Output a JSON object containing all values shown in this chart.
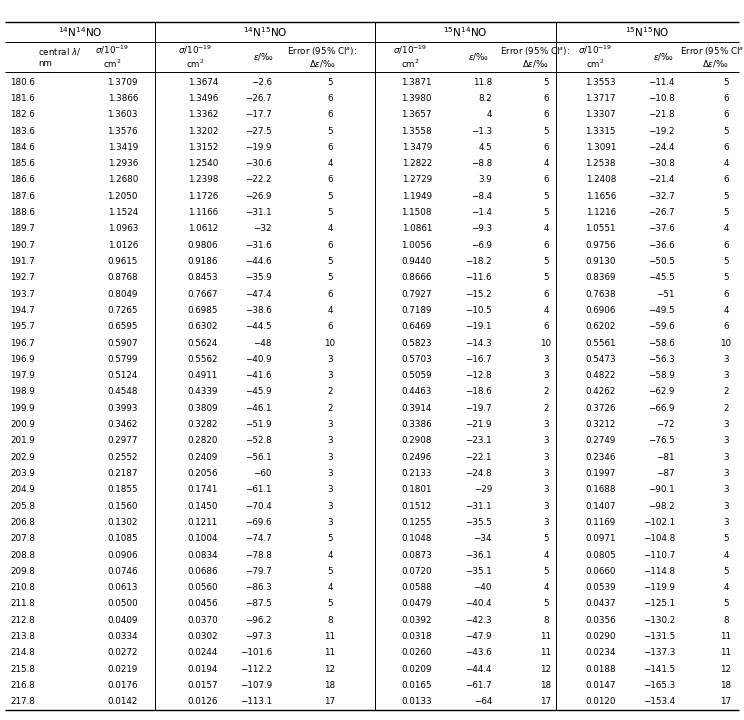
{
  "rows": [
    [
      "180.6",
      "1.3709",
      "1.3674",
      "−2.6",
      "5",
      "1.3871",
      "11.8",
      "5",
      "1.3553",
      "−11.4",
      "5"
    ],
    [
      "181.6",
      "1.3866",
      "1.3496",
      "−26.7",
      "6",
      "1.3980",
      "8.2",
      "6",
      "1.3717",
      "−10.8",
      "6"
    ],
    [
      "182.6",
      "1.3603",
      "1.3362",
      "−17.7",
      "6",
      "1.3657",
      "4",
      "6",
      "1.3307",
      "−21.8",
      "6"
    ],
    [
      "183.6",
      "1.3576",
      "1.3202",
      "−27.5",
      "5",
      "1.3558",
      "−1.3",
      "5",
      "1.3315",
      "−19.2",
      "5"
    ],
    [
      "184.6",
      "1.3419",
      "1.3152",
      "−19.9",
      "6",
      "1.3479",
      "4.5",
      "6",
      "1.3091",
      "−24.4",
      "6"
    ],
    [
      "185.6",
      "1.2936",
      "1.2540",
      "−30.6",
      "4",
      "1.2822",
      "−8.8",
      "4",
      "1.2538",
      "−30.8",
      "4"
    ],
    [
      "186.6",
      "1.2680",
      "1.2398",
      "−22.2",
      "6",
      "1.2729",
      "3.9",
      "6",
      "1.2408",
      "−21.4",
      "6"
    ],
    [
      "187.6",
      "1.2050",
      "1.1726",
      "−26.9",
      "5",
      "1.1949",
      "−8.4",
      "5",
      "1.1656",
      "−32.7",
      "5"
    ],
    [
      "188.6",
      "1.1524",
      "1.1166",
      "−31.1",
      "5",
      "1.1508",
      "−1.4",
      "5",
      "1.1216",
      "−26.7",
      "5"
    ],
    [
      "189.7",
      "1.0963",
      "1.0612",
      "−32",
      "4",
      "1.0861",
      "−9.3",
      "4",
      "1.0551",
      "−37.6",
      "4"
    ],
    [
      "190.7",
      "1.0126",
      "0.9806",
      "−31.6",
      "6",
      "1.0056",
      "−6.9",
      "6",
      "0.9756",
      "−36.6",
      "6"
    ],
    [
      "191.7",
      "0.9615",
      "0.9186",
      "−44.6",
      "5",
      "0.9440",
      "−18.2",
      "5",
      "0.9130",
      "−50.5",
      "5"
    ],
    [
      "192.7",
      "0.8768",
      "0.8453",
      "−35.9",
      "5",
      "0.8666",
      "−11.6",
      "5",
      "0.8369",
      "−45.5",
      "5"
    ],
    [
      "193.7",
      "0.8049",
      "0.7667",
      "−47.4",
      "6",
      "0.7927",
      "−15.2",
      "6",
      "0.7638",
      "−51",
      "6"
    ],
    [
      "194.7",
      "0.7265",
      "0.6985",
      "−38.6",
      "4",
      "0.7189",
      "−10.5",
      "4",
      "0.6906",
      "−49.5",
      "4"
    ],
    [
      "195.7",
      "0.6595",
      "0.6302",
      "−44.5",
      "6",
      "0.6469",
      "−19.1",
      "6",
      "0.6202",
      "−59.6",
      "6"
    ],
    [
      "196.7",
      "0.5907",
      "0.5624",
      "−48",
      "10",
      "0.5823",
      "−14.3",
      "10",
      "0.5561",
      "−58.6",
      "10"
    ],
    [
      "196.9",
      "0.5799",
      "0.5562",
      "−40.9",
      "3",
      "0.5703",
      "−16.7",
      "3",
      "0.5473",
      "−56.3",
      "3"
    ],
    [
      "197.9",
      "0.5124",
      "0.4911",
      "−41.6",
      "3",
      "0.5059",
      "−12.8",
      "3",
      "0.4822",
      "−58.9",
      "3"
    ],
    [
      "198.9",
      "0.4548",
      "0.4339",
      "−45.9",
      "2",
      "0.4463",
      "−18.6",
      "2",
      "0.4262",
      "−62.9",
      "2"
    ],
    [
      "199.9",
      "0.3993",
      "0.3809",
      "−46.1",
      "2",
      "0.3914",
      "−19.7",
      "2",
      "0.3726",
      "−66.9",
      "2"
    ],
    [
      "200.9",
      "0.3462",
      "0.3282",
      "−51.9",
      "3",
      "0.3386",
      "−21.9",
      "3",
      "0.3212",
      "−72",
      "3"
    ],
    [
      "201.9",
      "0.2977",
      "0.2820",
      "−52.8",
      "3",
      "0.2908",
      "−23.1",
      "3",
      "0.2749",
      "−76.5",
      "3"
    ],
    [
      "202.9",
      "0.2552",
      "0.2409",
      "−56.1",
      "3",
      "0.2496",
      "−22.1",
      "3",
      "0.2346",
      "−81",
      "3"
    ],
    [
      "203.9",
      "0.2187",
      "0.2056",
      "−60",
      "3",
      "0.2133",
      "−24.8",
      "3",
      "0.1997",
      "−87",
      "3"
    ],
    [
      "204.9",
      "0.1855",
      "0.1741",
      "−61.1",
      "3",
      "0.1801",
      "−29",
      "3",
      "0.1688",
      "−90.1",
      "3"
    ],
    [
      "205.8",
      "0.1560",
      "0.1450",
      "−70.4",
      "3",
      "0.1512",
      "−31.1",
      "3",
      "0.1407",
      "−98.2",
      "3"
    ],
    [
      "206.8",
      "0.1302",
      "0.1211",
      "−69.6",
      "3",
      "0.1255",
      "−35.5",
      "3",
      "0.1169",
      "−102.1",
      "3"
    ],
    [
      "207.8",
      "0.1085",
      "0.1004",
      "−74.7",
      "5",
      "0.1048",
      "−34",
      "5",
      "0.0971",
      "−104.8",
      "5"
    ],
    [
      "208.8",
      "0.0906",
      "0.0834",
      "−78.8",
      "4",
      "0.0873",
      "−36.1",
      "4",
      "0.0805",
      "−110.7",
      "4"
    ],
    [
      "209.8",
      "0.0746",
      "0.0686",
      "−79.7",
      "5",
      "0.0720",
      "−35.1",
      "5",
      "0.0660",
      "−114.8",
      "5"
    ],
    [
      "210.8",
      "0.0613",
      "0.0560",
      "−86.3",
      "4",
      "0.0588",
      "−40",
      "4",
      "0.0539",
      "−119.9",
      "4"
    ],
    [
      "211.8",
      "0.0500",
      "0.0456",
      "−87.5",
      "5",
      "0.0479",
      "−40.4",
      "5",
      "0.0437",
      "−125.1",
      "5"
    ],
    [
      "212.8",
      "0.0409",
      "0.0370",
      "−96.2",
      "8",
      "0.0392",
      "−42.3",
      "8",
      "0.0356",
      "−130.2",
      "8"
    ],
    [
      "213.8",
      "0.0334",
      "0.0302",
      "−97.3",
      "11",
      "0.0318",
      "−47.9",
      "11",
      "0.0290",
      "−131.5",
      "11"
    ],
    [
      "214.8",
      "0.0272",
      "0.0244",
      "−101.6",
      "11",
      "0.0260",
      "−43.6",
      "11",
      "0.0234",
      "−137.3",
      "11"
    ],
    [
      "215.8",
      "0.0219",
      "0.0194",
      "−112.2",
      "12",
      "0.0209",
      "−44.4",
      "12",
      "0.0188",
      "−141.5",
      "12"
    ],
    [
      "216.8",
      "0.0176",
      "0.0157",
      "−107.9",
      "18",
      "0.0165",
      "−61.7",
      "18",
      "0.0147",
      "−165.3",
      "18"
    ],
    [
      "217.8",
      "0.0142",
      "0.0126",
      "−113.1",
      "17",
      "0.0133",
      "−64",
      "17",
      "0.0120",
      "−153.4",
      "17"
    ]
  ]
}
